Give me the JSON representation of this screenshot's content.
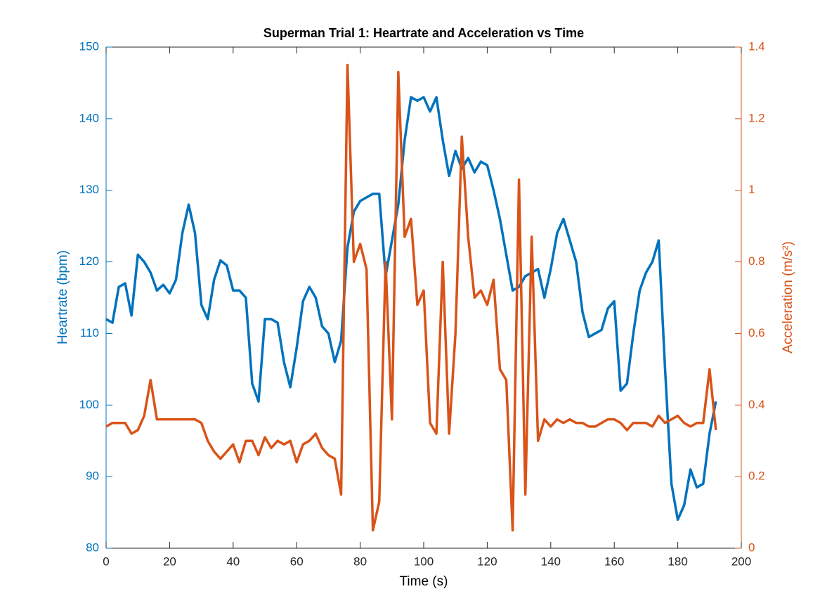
{
  "chart_data": {
    "type": "line",
    "title": "Superman Trial 1: Heartrate and Acceleration vs Time",
    "xlabel": "Time (s)",
    "ylabel": "Heartrate (bpm)",
    "y2label": "Acceleration (m/s²)",
    "x": [
      0,
      2,
      4,
      6,
      8,
      10,
      12,
      14,
      16,
      18,
      20,
      22,
      24,
      26,
      28,
      30,
      32,
      34,
      36,
      38,
      40,
      42,
      44,
      46,
      48,
      50,
      52,
      54,
      56,
      58,
      60,
      62,
      64,
      66,
      68,
      70,
      72,
      74,
      76,
      78,
      80,
      82,
      84,
      86,
      88,
      90,
      92,
      94,
      96,
      98,
      100,
      102,
      104,
      106,
      108,
      110,
      112,
      114,
      116,
      118,
      120,
      122,
      124,
      126,
      128,
      130,
      132,
      134,
      136,
      138,
      140,
      142,
      144,
      146,
      148,
      150,
      152,
      154,
      156,
      158,
      160,
      162,
      164,
      166,
      168,
      170,
      172,
      174,
      176,
      178,
      180,
      182,
      184,
      186,
      188,
      190,
      192
    ],
    "series": [
      {
        "name": "Heartrate",
        "color": "#0072bd",
        "axis": "y",
        "values": [
          112,
          111.5,
          116.5,
          117,
          112.5,
          121,
          120,
          118.5,
          116,
          116.8,
          115.6,
          117.5,
          124,
          128,
          124,
          114,
          112,
          117.5,
          120.2,
          119.5,
          116,
          116,
          115,
          103,
          100.5,
          112,
          112,
          111.5,
          106,
          102.5,
          108,
          114.5,
          116.5,
          115,
          111,
          110,
          106,
          109,
          122,
          127,
          128.5,
          129,
          129.5,
          129.5,
          118,
          123,
          128,
          137,
          143,
          142.5,
          143,
          141,
          143,
          137,
          132,
          135.5,
          133,
          134.5,
          132.5,
          134,
          133.5,
          130,
          126,
          121,
          116,
          116.5,
          118,
          118.5,
          119,
          115,
          119,
          124,
          126,
          123,
          120,
          113,
          109.5,
          110,
          110.5,
          113.5,
          114.5,
          102,
          103,
          110,
          116,
          118.5,
          120,
          123,
          105,
          89,
          84,
          86,
          91,
          88.5,
          89,
          96,
          100.5
        ]
      },
      {
        "name": "Acceleration",
        "color": "#d95319",
        "axis": "y2",
        "values": [
          0.34,
          0.35,
          0.35,
          0.35,
          0.32,
          0.33,
          0.37,
          0.47,
          0.36,
          0.36,
          0.36,
          0.36,
          0.36,
          0.36,
          0.36,
          0.35,
          0.3,
          0.27,
          0.25,
          0.27,
          0.29,
          0.24,
          0.3,
          0.3,
          0.26,
          0.31,
          0.28,
          0.3,
          0.29,
          0.3,
          0.24,
          0.29,
          0.3,
          0.32,
          0.28,
          0.26,
          0.25,
          0.15,
          1.35,
          0.8,
          0.85,
          0.78,
          0.05,
          0.13,
          0.8,
          0.36,
          1.33,
          0.87,
          0.92,
          0.68,
          0.72,
          0.35,
          0.32,
          0.8,
          0.32,
          0.6,
          1.15,
          0.87,
          0.7,
          0.72,
          0.68,
          0.75,
          0.5,
          0.47,
          0.05,
          1.03,
          0.15,
          0.87,
          0.3,
          0.36,
          0.34,
          0.36,
          0.35,
          0.36,
          0.35,
          0.35,
          0.34,
          0.34,
          0.35,
          0.36,
          0.36,
          0.35,
          0.33,
          0.35,
          0.35,
          0.35,
          0.34,
          0.37,
          0.35,
          0.36,
          0.37,
          0.35,
          0.34,
          0.35,
          0.35,
          0.5,
          0.33
        ]
      }
    ],
    "xlim": [
      0,
      200
    ],
    "xticks": [
      0,
      20,
      40,
      60,
      80,
      100,
      120,
      140,
      160,
      180,
      200
    ],
    "ylim": [
      80,
      150
    ],
    "yticks": [
      80,
      90,
      100,
      110,
      120,
      130,
      140,
      150
    ],
    "y2lim": [
      0,
      1.4
    ],
    "y2ticks": [
      0,
      0.2,
      0.4,
      0.6,
      0.8,
      1,
      1.2,
      1.4
    ]
  }
}
